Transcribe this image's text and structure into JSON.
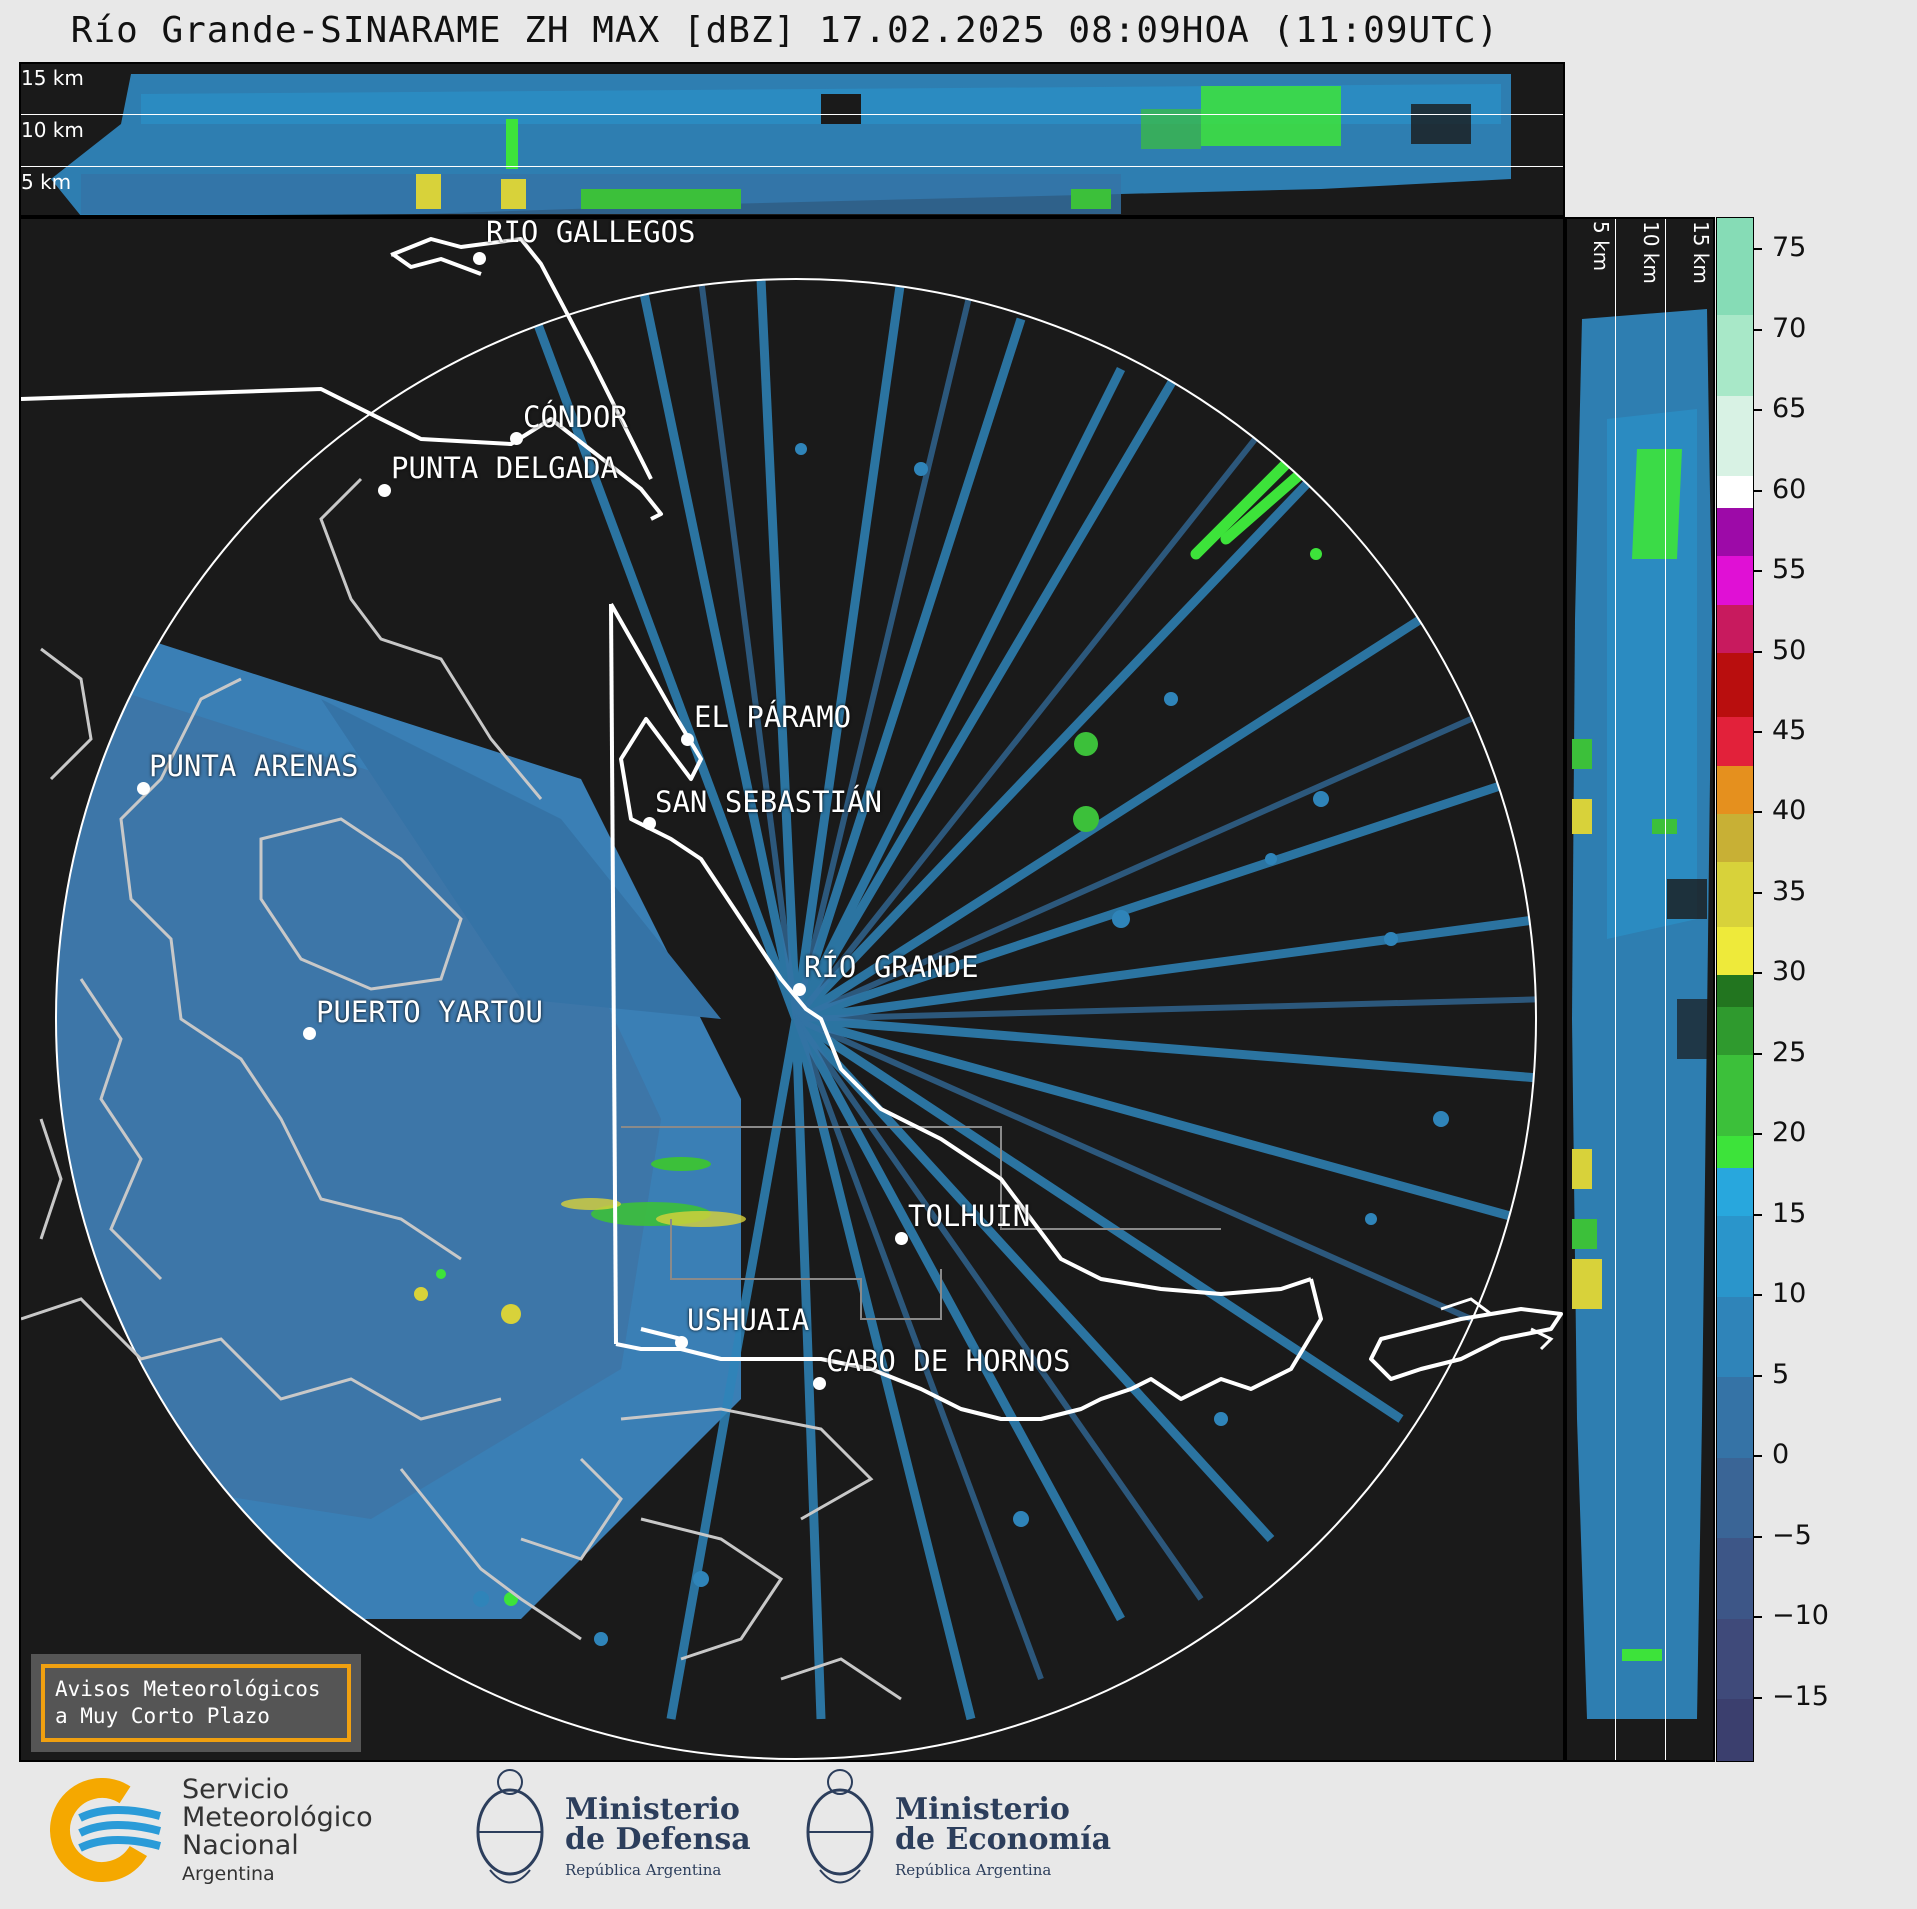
{
  "title": "Río Grande-SINARAME ZH MAX [dBZ] 17.02.2025 08:09HOA (11:09UTC)",
  "top_xsec": {
    "height_labels": [
      "15 km",
      "10 km",
      "5 km"
    ]
  },
  "right_xsec": {
    "height_labels": [
      "5 km",
      "10 km",
      "15 km"
    ]
  },
  "cities": [
    {
      "name": "RÍO GALLEGOS"
    },
    {
      "name": "CÓNDOR"
    },
    {
      "name": "PUNTA DELGADA"
    },
    {
      "name": "PUNTA ARENAS"
    },
    {
      "name": "EL PÁRAMO"
    },
    {
      "name": "SAN SEBASTIÁN"
    },
    {
      "name": "RÍO GRANDE"
    },
    {
      "name": "PUERTO YARTOU"
    },
    {
      "name": "TOLHUIN"
    },
    {
      "name": "USHUAIA"
    },
    {
      "name": "CABO DE HORNOS"
    }
  ],
  "warning": {
    "line1": "Avisos Meteorológicos",
    "line2": "a Muy Corto Plazo"
  },
  "colorbar": {
    "unit": "dBZ",
    "min": -19,
    "max": 77,
    "tick_labels": [
      "75",
      "70",
      "65",
      "60",
      "55",
      "50",
      "45",
      "40",
      "35",
      "30",
      "25",
      "20",
      "15",
      "10",
      "5",
      "0",
      "−5",
      "−10",
      "−15"
    ],
    "segments": [
      {
        "from": -19,
        "to": -15,
        "color": "#3b3f6e"
      },
      {
        "from": -15,
        "to": -10,
        "color": "#3f4a7a"
      },
      {
        "from": -10,
        "to": -5,
        "color": "#3d5687"
      },
      {
        "from": -5,
        "to": 0,
        "color": "#3a6596"
      },
      {
        "from": 0,
        "to": 5,
        "color": "#3573a6"
      },
      {
        "from": 5,
        "to": 10,
        "color": "#2f84b9"
      },
      {
        "from": 10,
        "to": 15,
        "color": "#2a95cb"
      },
      {
        "from": 15,
        "to": 18,
        "color": "#28a7dd"
      },
      {
        "from": 18,
        "to": 20,
        "color": "#3de33a"
      },
      {
        "from": 20,
        "to": 25,
        "color": "#3cc03a"
      },
      {
        "from": 25,
        "to": 28,
        "color": "#2f9a2e"
      },
      {
        "from": 28,
        "to": 30,
        "color": "#22751f"
      },
      {
        "from": 30,
        "to": 33,
        "color": "#eeea3a"
      },
      {
        "from": 33,
        "to": 37,
        "color": "#d8d23a"
      },
      {
        "from": 37,
        "to": 40,
        "color": "#c8b035"
      },
      {
        "from": 40,
        "to": 43,
        "color": "#e5901e"
      },
      {
        "from": 43,
        "to": 46,
        "color": "#e2213a"
      },
      {
        "from": 46,
        "to": 50,
        "color": "#b90e0e"
      },
      {
        "from": 50,
        "to": 53,
        "color": "#c81a5e"
      },
      {
        "from": 53,
        "to": 56,
        "color": "#e010d5"
      },
      {
        "from": 56,
        "to": 59,
        "color": "#9d0aa8"
      },
      {
        "from": 59,
        "to": 61,
        "color": "#ffffff"
      },
      {
        "from": 61,
        "to": 66,
        "color": "#d8f2e4"
      },
      {
        "from": 66,
        "to": 71,
        "color": "#a8e8c8"
      },
      {
        "from": 71,
        "to": 77,
        "color": "#86dcb6"
      }
    ]
  },
  "logos": {
    "smn": {
      "line1": "Servicio",
      "line2": "Meteorológico",
      "line3": "Nacional",
      "line4": "Argentina"
    },
    "defensa": {
      "line1": "Ministerio",
      "line2": "de Defensa",
      "line3": "República Argentina"
    },
    "economia": {
      "line1": "Ministerio",
      "line2": "de Economía",
      "line3": "República Argentina"
    }
  }
}
